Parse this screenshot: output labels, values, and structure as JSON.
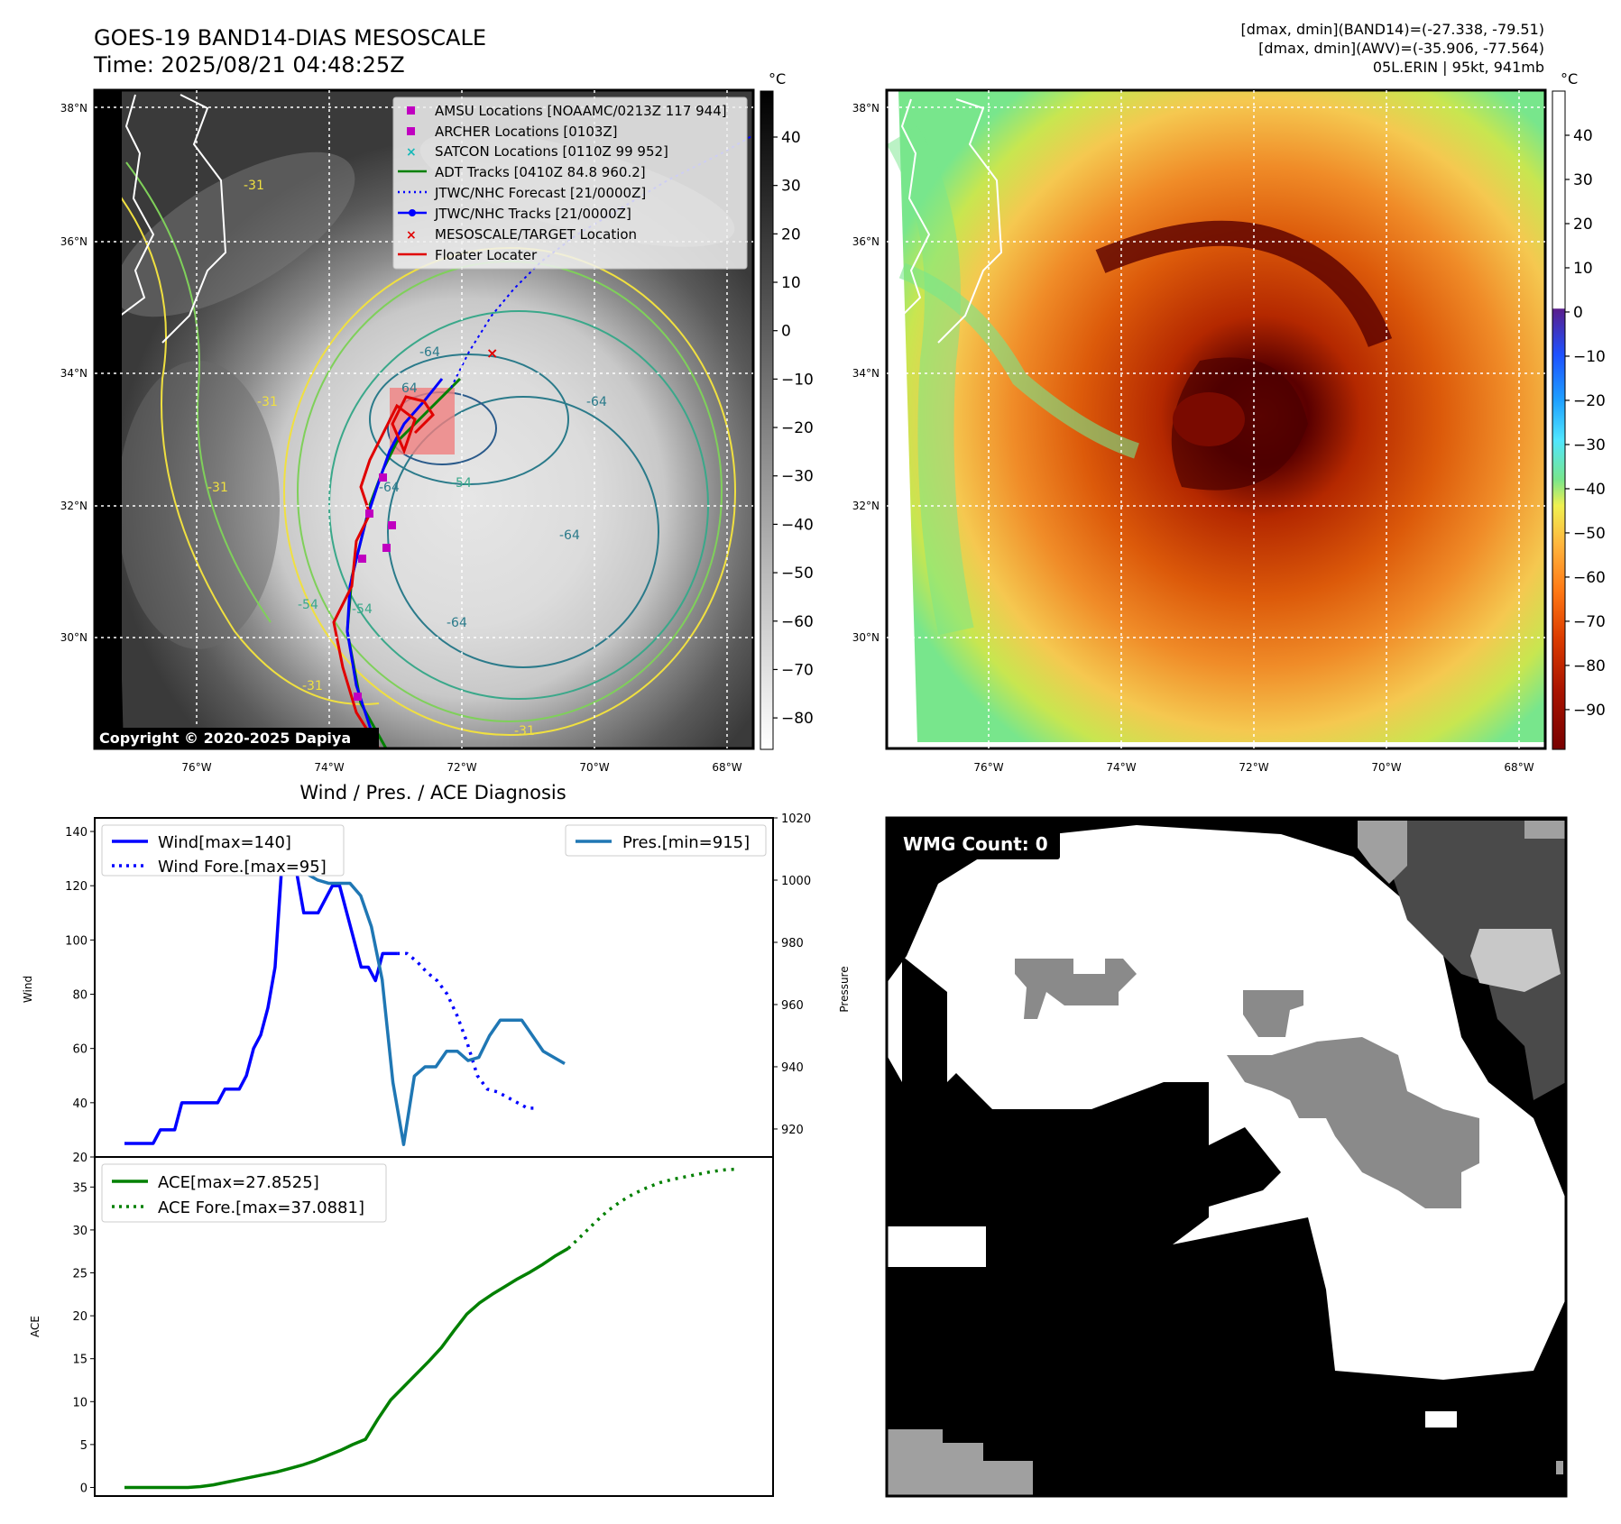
{
  "header": {
    "title_line1": "GOES-19 BAND14-DIAS MESOSCALE",
    "title_line2": "Time: 2025/08/21 04:48:25Z",
    "dmax_band14": "[dmax, dmin](BAND14)=(-27.338, -79.51)",
    "dmax_awv": "[dmax, dmin](AWV)=(-35.906, -77.564)",
    "storm_info": "05L.ERIN | 95kt, 941mb",
    "copyright": "Copyright © 2020-2025 Dapiya"
  },
  "map_axes": {
    "lat_labels": [
      "38°N",
      "36°N",
      "34°N",
      "32°N",
      "30°N"
    ],
    "lat_values": [
      38,
      36,
      34,
      32,
      30
    ],
    "lon_labels": [
      "76°W",
      "74°W",
      "72°W",
      "70°W",
      "68°W"
    ],
    "lon_values": [
      -76,
      -74,
      -72,
      -70,
      -68
    ]
  },
  "legend": {
    "amsu": "AMSU Locations [NOAAMC/0213Z 117 944]",
    "archer": "ARCHER Locations [0103Z]",
    "satcon": "SATCON Locations [0110Z 99 952]",
    "adt": "ADT Tracks [0410Z 84.8 960.2]",
    "forecast": "JTWC/NHC Forecast [21/0000Z]",
    "tracks": "JTWC/NHC Tracks [21/0000Z]",
    "target": "MESOSCALE/TARGET Location",
    "floater": "Floater Locater"
  },
  "contour_labels": [
    "-31",
    "-31",
    "-31",
    "-31",
    "-31",
    "-54",
    "-54",
    "-54",
    "-64",
    "-64",
    "-64",
    "-64",
    "-64",
    "64"
  ],
  "colorbar_gray": {
    "unit": "°C",
    "ticks": [
      "40",
      "30",
      "20",
      "10",
      "0",
      "−10",
      "−20",
      "−30",
      "−40",
      "−50",
      "−60",
      "−70",
      "−80"
    ],
    "values": [
      40,
      30,
      20,
      10,
      0,
      -10,
      -20,
      -30,
      -40,
      -50,
      -60,
      -70,
      -80
    ]
  },
  "colorbar_color": {
    "unit": "°C",
    "ticks": [
      "40",
      "30",
      "20",
      "10",
      "0",
      "−10",
      "−20",
      "−30",
      "−40",
      "−50",
      "−60",
      "−70",
      "−80",
      "−90"
    ],
    "values": [
      40,
      30,
      20,
      10,
      0,
      -10,
      -20,
      -30,
      -40,
      -50,
      -60,
      -70,
      -80,
      -90
    ],
    "colors": [
      "#ffffff",
      "#5a1e8c",
      "#1e50ff",
      "#1ea0ff",
      "#50e6ff",
      "#78e68c",
      "#f0f050",
      "#ffb43c",
      "#ff7814",
      "#dc3c00",
      "#aa1400",
      "#780000"
    ]
  },
  "wmg": {
    "label": "WMG Count: 0"
  },
  "chart_data": [
    {
      "type": "line",
      "title": "Wind / Pres. / ACE Diagnosis",
      "ylabel": "Wind",
      "ylabel_right": "Pressure",
      "ylim": [
        20,
        145
      ],
      "ylim_right": [
        911,
        1020
      ],
      "yticks": [
        "140",
        "120",
        "100",
        "80",
        "60",
        "40",
        "20"
      ],
      "yticks_right": [
        "1020",
        "1000",
        "980",
        "960",
        "940",
        "920"
      ],
      "series": [
        {
          "name": "Wind[max=140]",
          "color": "#0000ff",
          "style": "solid",
          "values": [
            25,
            25,
            25,
            25,
            25,
            30,
            30,
            30,
            40,
            40,
            40,
            40,
            40,
            40,
            45,
            45,
            45,
            50,
            60,
            65,
            75,
            90,
            130,
            140,
            125,
            110,
            110,
            110,
            115,
            120,
            120,
            110,
            100,
            90,
            90,
            85,
            95,
            95,
            95
          ]
        },
        {
          "name": "Wind Fore.[max=95]",
          "color": "#0000ff",
          "style": "dotted",
          "values": [
            95,
            95,
            92,
            88,
            85,
            80,
            72,
            62,
            50,
            45,
            44,
            42,
            40,
            38,
            38
          ]
        },
        {
          "name": "Pres.[min=915]",
          "color": "#1f77b4",
          "style": "solid",
          "values": [
            1015,
            1015,
            1010,
            1009,
            1008,
            1008,
            1007,
            1006,
            1005,
            1005,
            1004,
            1004,
            1003,
            1003,
            1003,
            1002,
            1002,
            1002,
            1000,
            999,
            999,
            999,
            995,
            985,
            968,
            935,
            915,
            937,
            940,
            940,
            945,
            945,
            942,
            943,
            950,
            955,
            955,
            955,
            950,
            945,
            943,
            941
          ]
        }
      ]
    },
    {
      "type": "line",
      "ylabel": "ACE",
      "ylim": [
        -1,
        38.5
      ],
      "yticks": [
        "0",
        "5",
        "10",
        "15",
        "20",
        "25",
        "30",
        "35"
      ],
      "series": [
        {
          "name": "ACE[max=27.8525]",
          "color": "#008000",
          "style": "solid",
          "values": [
            0,
            0,
            0,
            0,
            0,
            0,
            0.1,
            0.3,
            0.6,
            0.9,
            1.2,
            1.5,
            1.8,
            2.2,
            2.6,
            3.1,
            3.7,
            4.3,
            5,
            5.6,
            8,
            10.2,
            11.7,
            13.2,
            14.7,
            16.3,
            18.3,
            20.2,
            21.5,
            22.5,
            23.4,
            24.3,
            25.1,
            26,
            27,
            27.85
          ]
        },
        {
          "name": "ACE Fore.[max=37.0881]",
          "color": "#008000",
          "style": "dotted",
          "values": [
            27.85,
            29.3,
            30.8,
            32.2,
            33.3,
            34.2,
            34.9,
            35.5,
            35.9,
            36.2,
            36.5,
            36.8,
            37.0,
            37.09
          ]
        }
      ]
    }
  ]
}
